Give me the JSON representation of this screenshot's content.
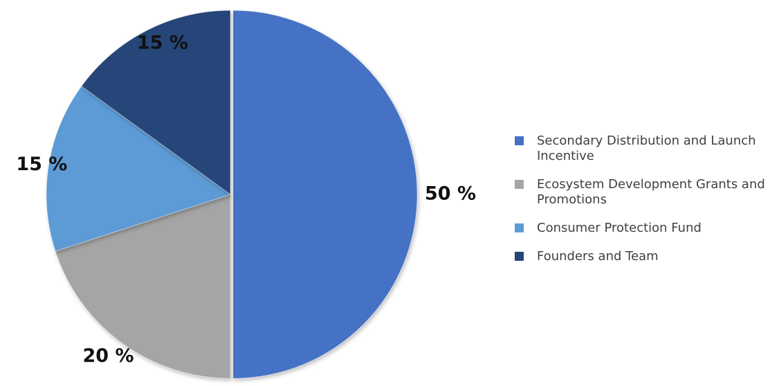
{
  "chart_data": {
    "type": "pie",
    "categories": [
      "Secondary Distribution and Launch Incentive",
      "Ecosystem Development Grants and Promotions",
      "Consumer Protection Fund",
      "Founders and Team"
    ],
    "values": [
      50,
      20,
      15,
      15
    ],
    "data_labels": [
      "50 %",
      "20 %",
      "15 %",
      "15 %"
    ],
    "colors": [
      "#4472C4",
      "#A5A5A5",
      "#5B9BD5",
      "#264478"
    ],
    "exploded": [
      true,
      false,
      false,
      false
    ],
    "start_angle": "12 o'clock, clockwise",
    "legend_position": "right"
  }
}
